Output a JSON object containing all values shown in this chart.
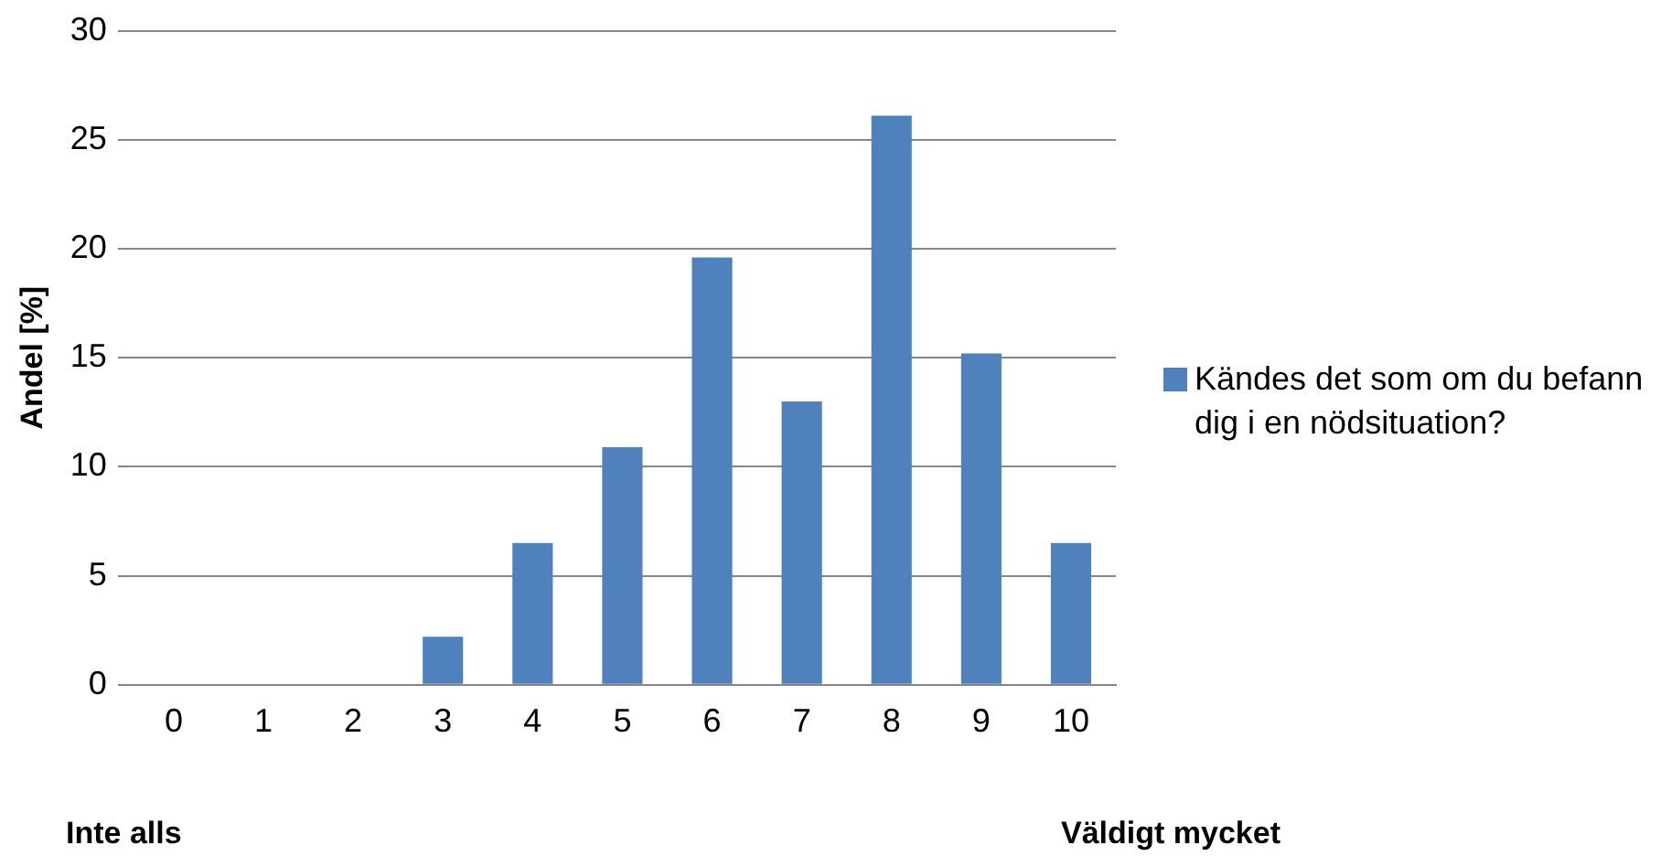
{
  "chart_data": {
    "type": "bar",
    "ylabel": "Andel [%]",
    "categories": [
      "0",
      "1",
      "2",
      "3",
      "4",
      "5",
      "6",
      "7",
      "8",
      "9",
      "10"
    ],
    "series": [
      {
        "name": "Kändes det som om du befann dig i en nödsituation?",
        "color": "#4f81bd",
        "values": [
          0,
          0,
          0,
          2.2,
          6.5,
          10.9,
          19.6,
          13.0,
          26.1,
          15.2,
          6.5
        ]
      }
    ],
    "ylim": [
      0,
      30
    ],
    "yticks": [
      0,
      5,
      10,
      15,
      20,
      25,
      30
    ],
    "grid": "y",
    "legend": "right",
    "annotations": [
      "Inte alls",
      "Väldigt mycket"
    ]
  }
}
